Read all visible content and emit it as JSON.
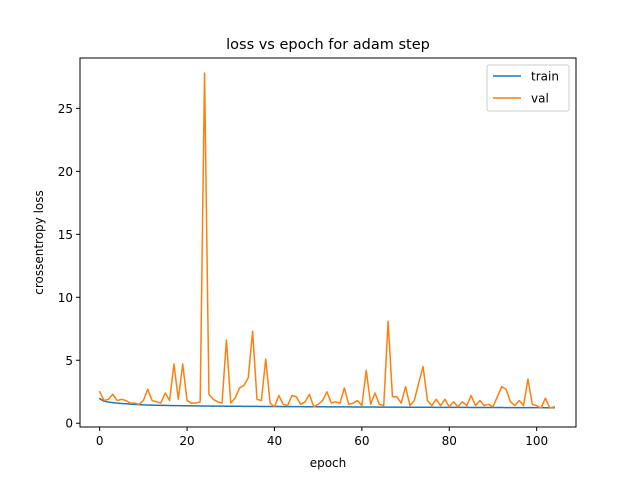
{
  "chart_data": {
    "type": "line",
    "title": "loss vs epoch for adam step",
    "xlabel": "epoch",
    "ylabel": "crossentropy loss",
    "xlim": [
      -4.5,
      109
    ],
    "ylim": [
      -0.3,
      29.0
    ],
    "xticks": [
      0,
      20,
      40,
      60,
      80,
      100
    ],
    "yticks": [
      0,
      5,
      10,
      15,
      20,
      25
    ],
    "grid": false,
    "legend_position": "top-right",
    "series": [
      {
        "name": "train",
        "color": "#1f77b4",
        "values": [
          1.95,
          1.75,
          1.68,
          1.64,
          1.6,
          1.57,
          1.55,
          1.52,
          1.5,
          1.48,
          1.46,
          1.45,
          1.44,
          1.43,
          1.42,
          1.42,
          1.41,
          1.4,
          1.4,
          1.39,
          1.39,
          1.38,
          1.38,
          1.37,
          1.37,
          1.37,
          1.36,
          1.36,
          1.36,
          1.35,
          1.35,
          1.35,
          1.35,
          1.34,
          1.34,
          1.34,
          1.34,
          1.33,
          1.33,
          1.33,
          1.33,
          1.33,
          1.32,
          1.32,
          1.32,
          1.32,
          1.32,
          1.31,
          1.31,
          1.31,
          1.31,
          1.31,
          1.3,
          1.3,
          1.3,
          1.3,
          1.3,
          1.3,
          1.29,
          1.29,
          1.29,
          1.29,
          1.29,
          1.29,
          1.28,
          1.28,
          1.28,
          1.28,
          1.28,
          1.28,
          1.27,
          1.27,
          1.27,
          1.27,
          1.27,
          1.27,
          1.27,
          1.26,
          1.26,
          1.26,
          1.26,
          1.26,
          1.26,
          1.26,
          1.26,
          1.25,
          1.25,
          1.25,
          1.25,
          1.25,
          1.25,
          1.25,
          1.25,
          1.24,
          1.24,
          1.24,
          1.24,
          1.24,
          1.24,
          1.24,
          1.24,
          1.24,
          1.23,
          1.23,
          1.23
        ]
      },
      {
        "name": "val",
        "color": "#ff7f0e",
        "values": [
          2.5,
          1.8,
          1.9,
          2.3,
          1.8,
          1.9,
          1.8,
          1.6,
          1.6,
          1.5,
          1.8,
          2.7,
          1.8,
          1.7,
          1.6,
          2.4,
          1.8,
          4.7,
          1.9,
          4.7,
          1.8,
          1.6,
          1.6,
          1.7,
          27.8,
          2.3,
          1.9,
          1.7,
          1.6,
          6.6,
          1.6,
          2.0,
          2.8,
          3.0,
          3.6,
          7.3,
          1.9,
          1.8,
          5.1,
          1.6,
          1.3,
          2.2,
          1.5,
          1.4,
          2.2,
          2.1,
          1.5,
          1.7,
          2.3,
          1.3,
          1.5,
          1.8,
          2.5,
          1.6,
          1.7,
          1.6,
          2.8,
          1.5,
          1.6,
          1.8,
          1.4,
          4.2,
          1.5,
          2.4,
          1.5,
          1.4,
          8.1,
          2.1,
          2.1,
          1.6,
          2.9,
          1.4,
          1.8,
          3.2,
          4.5,
          1.8,
          1.4,
          1.9,
          1.4,
          1.9,
          1.3,
          1.7,
          1.3,
          1.7,
          1.4,
          2.2,
          1.4,
          1.8,
          1.4,
          1.5,
          1.3,
          2.1,
          2.9,
          2.7,
          1.7,
          1.4,
          1.8,
          1.4,
          3.5,
          1.5,
          1.4,
          1.2,
          2.0,
          1.2,
          1.3
        ]
      }
    ]
  }
}
